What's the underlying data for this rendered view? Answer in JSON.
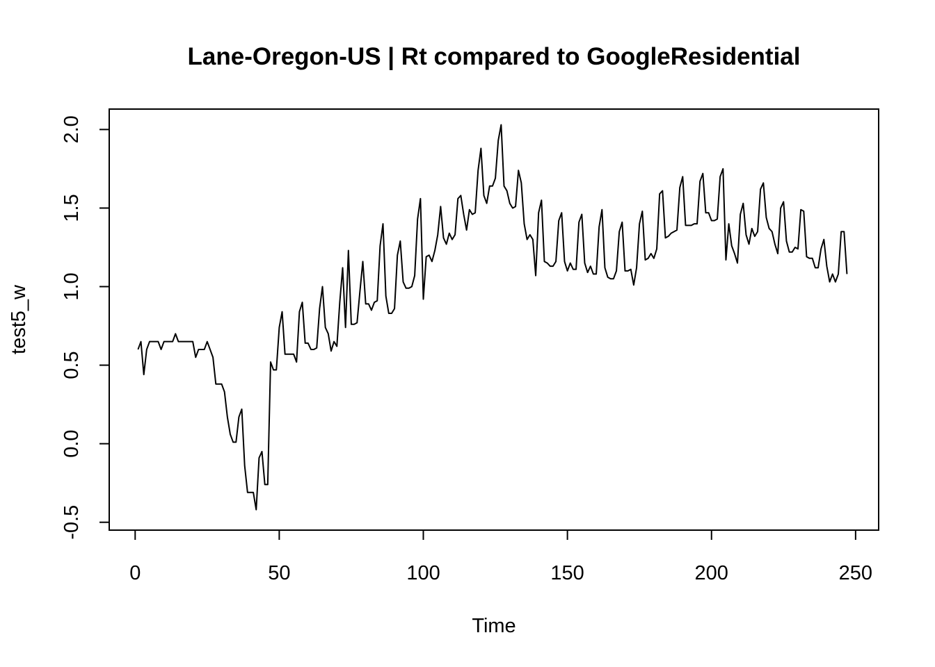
{
  "chart_data": {
    "type": "line",
    "title": "Lane-Oregon-US | Rt compared to GoogleResidential",
    "xlabel": "Time",
    "ylabel": "test5_w",
    "xlim": [
      -9,
      258
    ],
    "ylim": [
      -0.55,
      2.13
    ],
    "x_ticks": [
      0,
      50,
      100,
      150,
      200,
      250
    ],
    "y_ticks": [
      -0.5,
      0.0,
      0.5,
      1.0,
      1.5,
      2.0
    ],
    "x_tick_labels": [
      "0",
      "50",
      "100",
      "150",
      "200",
      "250"
    ],
    "y_tick_labels": [
      "-0.5",
      "0.0",
      "0.5",
      "1.0",
      "1.5",
      "2.0"
    ],
    "grid": false,
    "legend": "none",
    "line_color": "#000000",
    "series": [
      {
        "x_start": 1,
        "values": [
          0.6,
          0.65,
          0.44,
          0.6,
          0.65,
          0.65,
          0.65,
          0.65,
          0.6,
          0.65,
          0.65,
          0.65,
          0.65,
          0.7,
          0.65,
          0.65,
          0.65,
          0.65,
          0.65,
          0.65,
          0.55,
          0.6,
          0.6,
          0.6,
          0.65,
          0.6,
          0.55,
          0.38,
          0.38,
          0.38,
          0.33,
          0.17,
          0.06,
          0.01,
          0.01,
          0.17,
          0.22,
          -0.14,
          -0.31,
          -0.31,
          -0.31,
          -0.42,
          -0.09,
          -0.05,
          -0.26,
          -0.26,
          0.52,
          0.47,
          0.47,
          0.74,
          0.84,
          0.57,
          0.57,
          0.57,
          0.57,
          0.52,
          0.84,
          0.9,
          0.64,
          0.64,
          0.6,
          0.6,
          0.61,
          0.86,
          1.0,
          0.74,
          0.7,
          0.59,
          0.65,
          0.62,
          0.9,
          1.12,
          0.74,
          1.23,
          0.76,
          0.76,
          0.77,
          0.97,
          1.16,
          0.89,
          0.89,
          0.85,
          0.9,
          0.91,
          1.26,
          1.4,
          0.94,
          0.83,
          0.83,
          0.86,
          1.2,
          1.29,
          1.03,
          0.99,
          0.99,
          1.0,
          1.07,
          1.43,
          1.56,
          0.92,
          1.19,
          1.2,
          1.16,
          1.23,
          1.33,
          1.51,
          1.31,
          1.27,
          1.34,
          1.3,
          1.33,
          1.56,
          1.58,
          1.46,
          1.36,
          1.49,
          1.46,
          1.47,
          1.74,
          1.88,
          1.58,
          1.53,
          1.64,
          1.64,
          1.69,
          1.93,
          2.03,
          1.64,
          1.61,
          1.53,
          1.5,
          1.51,
          1.74,
          1.66,
          1.4,
          1.3,
          1.33,
          1.3,
          1.07,
          1.47,
          1.55,
          1.16,
          1.15,
          1.13,
          1.13,
          1.16,
          1.42,
          1.47,
          1.16,
          1.1,
          1.15,
          1.11,
          1.11,
          1.41,
          1.46,
          1.15,
          1.09,
          1.13,
          1.08,
          1.08,
          1.38,
          1.49,
          1.12,
          1.06,
          1.05,
          1.05,
          1.1,
          1.35,
          1.41,
          1.1,
          1.1,
          1.11,
          1.01,
          1.12,
          1.4,
          1.48,
          1.17,
          1.18,
          1.21,
          1.18,
          1.24,
          1.59,
          1.61,
          1.31,
          1.32,
          1.34,
          1.35,
          1.36,
          1.63,
          1.7,
          1.39,
          1.39,
          1.39,
          1.4,
          1.4,
          1.67,
          1.72,
          1.47,
          1.47,
          1.42,
          1.42,
          1.43,
          1.7,
          1.75,
          1.17,
          1.4,
          1.26,
          1.21,
          1.15,
          1.46,
          1.53,
          1.33,
          1.27,
          1.37,
          1.32,
          1.35,
          1.62,
          1.66,
          1.44,
          1.37,
          1.35,
          1.27,
          1.21,
          1.5,
          1.54,
          1.29,
          1.22,
          1.22,
          1.25,
          1.24,
          1.49,
          1.48,
          1.19,
          1.18,
          1.18,
          1.12,
          1.12,
          1.24,
          1.3,
          1.13,
          1.03,
          1.08,
          1.03,
          1.08,
          1.35,
          1.35,
          1.08
        ]
      }
    ]
  }
}
